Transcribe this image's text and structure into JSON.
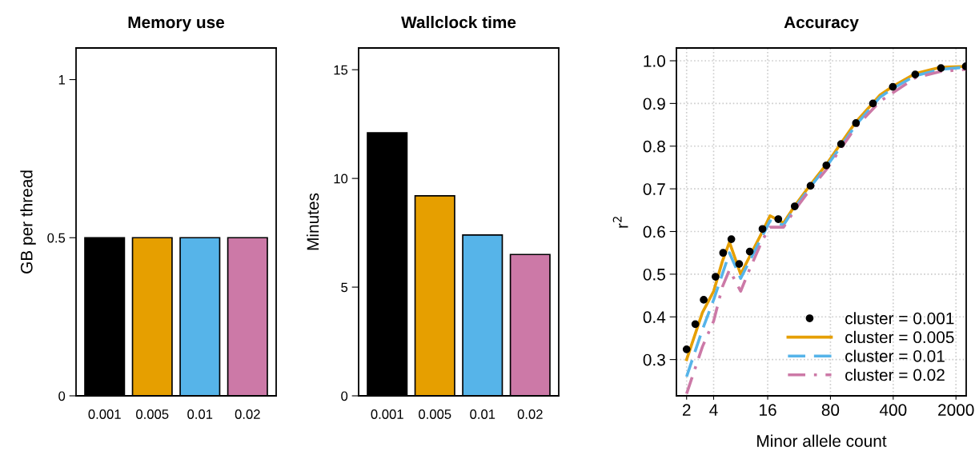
{
  "chart_data": [
    {
      "type": "bar",
      "title": "Memory use",
      "ylabel": "GB per thread",
      "categories": [
        "0.001",
        "0.005",
        "0.01",
        "0.02"
      ],
      "values": [
        0.5,
        0.5,
        0.5,
        0.5
      ],
      "colors": [
        "#000000",
        "#e69f00",
        "#56b4e9",
        "#cc79a7"
      ],
      "ylim": [
        0,
        1.1
      ],
      "yticks": [
        0,
        0.5,
        1
      ],
      "grid": false,
      "legend": false
    },
    {
      "type": "bar",
      "title": "Wallclock time",
      "ylabel": "Minutes",
      "categories": [
        "0.001",
        "0.005",
        "0.01",
        "0.02"
      ],
      "values": [
        12.1,
        9.2,
        7.4,
        6.5
      ],
      "colors": [
        "#000000",
        "#e69f00",
        "#56b4e9",
        "#cc79a7"
      ],
      "ylim": [
        0,
        16
      ],
      "yticks": [
        0,
        5,
        10,
        15
      ],
      "grid": false,
      "legend": false
    },
    {
      "type": "line",
      "title": "Accuracy",
      "xlabel": "Minor allele count",
      "ylabel": "r$^{2}$",
      "log": "x",
      "xlim": [
        1.54,
        2600
      ],
      "xticks": [
        2,
        4,
        16,
        80,
        400,
        2000
      ],
      "ylim": [
        0.215,
        1.03
      ],
      "yticks": [
        {
          "value": 0.3,
          "label": "0.3"
        },
        {
          "value": 0.4,
          "label": "0.4"
        },
        {
          "value": 0.5,
          "label": "0.5"
        },
        {
          "value": 0.6,
          "label": "0.6"
        },
        {
          "value": 0.7,
          "label": "0.7"
        },
        {
          "value": 0.8,
          "label": "0.8"
        },
        {
          "value": 0.9,
          "label": "0.9"
        },
        {
          "value": 1.0,
          "label": "1.0"
        }
      ],
      "grid": true,
      "legend": "bottom right",
      "series": [
        {
          "name": "cluster = 0.001",
          "type": "scatter",
          "marker": "circle",
          "color": "#000000",
          "x": [
            2,
            2.5,
            3.1,
            4.2,
            5.1,
            6.3,
            7.7,
            10.1,
            14,
            21,
            32,
            48,
            72,
            105,
            154,
            238,
            396,
            704,
            1361,
            2574
          ],
          "values": [
            0.324,
            0.383,
            0.44,
            0.494,
            0.55,
            0.582,
            0.524,
            0.553,
            0.606,
            0.629,
            0.659,
            0.707,
            0.755,
            0.805,
            0.854,
            0.9,
            0.939,
            0.968,
            0.983,
            0.987
          ]
        },
        {
          "name": "cluster = 0.005",
          "type": "line",
          "line_style": "solid",
          "color": "#e69f00",
          "x": [
            2,
            3,
            4,
            5,
            6,
            8,
            10,
            14,
            17,
            24,
            32,
            48,
            72,
            105,
            154,
            286,
            396,
            704,
            1361,
            2574
          ],
          "values": [
            0.3,
            0.41,
            0.46,
            0.53,
            0.575,
            0.5,
            0.54,
            0.6,
            0.637,
            0.62,
            0.66,
            0.71,
            0.757,
            0.807,
            0.857,
            0.92,
            0.94,
            0.97,
            0.985,
            0.987
          ]
        },
        {
          "name": "cluster = 0.01",
          "type": "line",
          "line_style": "dashed",
          "color": "#56b4e9",
          "x": [
            2,
            3,
            4,
            5,
            6,
            8,
            10,
            14,
            17,
            24,
            32,
            48,
            72,
            105,
            154,
            286,
            396,
            704,
            1361,
            2574
          ],
          "values": [
            0.26,
            0.37,
            0.44,
            0.5,
            0.55,
            0.49,
            0.53,
            0.59,
            0.625,
            0.615,
            0.655,
            0.705,
            0.752,
            0.8,
            0.85,
            0.915,
            0.935,
            0.965,
            0.98,
            0.985
          ]
        },
        {
          "name": "cluster = 0.02",
          "type": "line",
          "line_style": "dashdot",
          "color": "#cc79a7",
          "x": [
            2,
            3,
            4,
            5,
            6,
            8,
            10,
            14,
            17,
            24,
            32,
            48,
            72,
            105,
            154,
            286,
            396,
            704,
            1361,
            2574
          ],
          "values": [
            0.22,
            0.33,
            0.39,
            0.47,
            0.51,
            0.46,
            0.51,
            0.58,
            0.61,
            0.61,
            0.65,
            0.7,
            0.745,
            0.795,
            0.845,
            0.905,
            0.925,
            0.96,
            0.975,
            0.98
          ]
        }
      ]
    }
  ]
}
